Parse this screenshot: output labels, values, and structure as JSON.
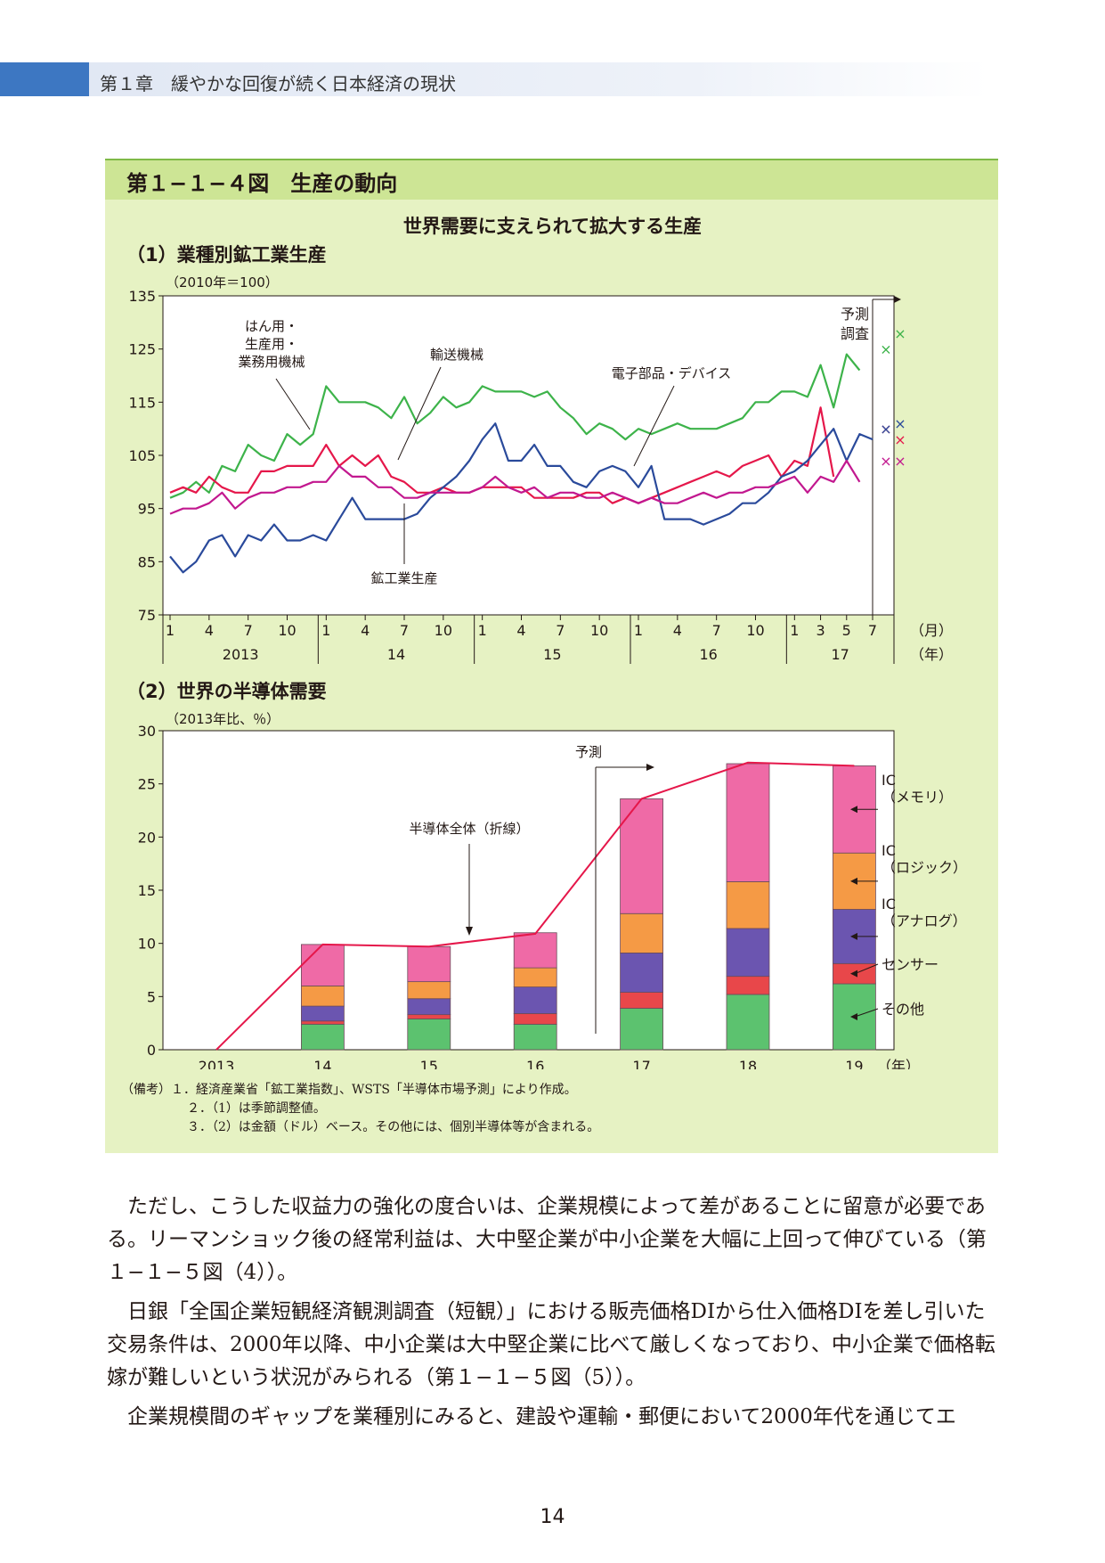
{
  "header": {
    "chapter": "第１章　緩やかな回復が続く日本経済の現状"
  },
  "figure": {
    "title": "第１−１−４図　生産の動向",
    "subtitle": "世界需要に支えられて拡大する生産"
  },
  "colors": {
    "green": "#3db34a",
    "red": "#e5174a",
    "blue": "#2a4a9b",
    "magenta": "#c2188f",
    "pink": "#ef6aa6",
    "orange": "#f59a45",
    "purple": "#6b55b0",
    "other": "#5cc26f",
    "sensor": "#e8474a"
  },
  "chart_data": [
    {
      "type": "line",
      "title": "（1）業種別鉱工業生産",
      "unit": "（2010年＝100）",
      "ylim": [
        75,
        135
      ],
      "yticks": [
        75,
        85,
        95,
        105,
        115,
        125,
        135
      ],
      "month_ticks": [
        "1",
        "4",
        "7",
        "10",
        "1",
        "4",
        "7",
        "10",
        "1",
        "4",
        "7",
        "10",
        "1",
        "4",
        "7",
        "10",
        "1",
        "3",
        "5",
        "7"
      ],
      "year_labels": [
        "2013",
        "14",
        "15",
        "16",
        "17"
      ],
      "month_unit": "（月）",
      "year_unit": "（年）",
      "forecast_label_1": "予測",
      "forecast_label_2": "調査",
      "series": [
        {
          "name": "はん用・生産用・業務用機械",
          "color": "#3db34a",
          "values": [
            97,
            98,
            100,
            98,
            103,
            102,
            107,
            105,
            104,
            109,
            107,
            109,
            118,
            115,
            115,
            115,
            114,
            112,
            116,
            111,
            113,
            116,
            114,
            115,
            118,
            117,
            117,
            117,
            116,
            117,
            114,
            112,
            109,
            111,
            110,
            108,
            110,
            109,
            110,
            111,
            110,
            110,
            110,
            111,
            112,
            115,
            115,
            117,
            117,
            116,
            122,
            114,
            124,
            121
          ],
          "forecast": [
            125,
            128
          ]
        },
        {
          "name": "輸送機械",
          "color": "#e5174a",
          "values": [
            98,
            99,
            98,
            101,
            99,
            98,
            98,
            102,
            102,
            103,
            103,
            103,
            107,
            103,
            105,
            103,
            105,
            101,
            100,
            98,
            98,
            99,
            98,
            98,
            99,
            99,
            99,
            99,
            97,
            97,
            97,
            97,
            98,
            98,
            96,
            97,
            96,
            97,
            98,
            99,
            100,
            101,
            102,
            101,
            103,
            104,
            105,
            101,
            104,
            103,
            114,
            101
          ],
          "forecast": [
            110,
            108
          ]
        },
        {
          "name": "鉱工業生産",
          "color": "#2a4a9b",
          "values": [
            86,
            83,
            85,
            89,
            90,
            86,
            90,
            89,
            92,
            89,
            89,
            90,
            89,
            93,
            97,
            93,
            93,
            93,
            93,
            94,
            97,
            99,
            101,
            104,
            108,
            111,
            104,
            104,
            107,
            103,
            103,
            100,
            99,
            102,
            103,
            102,
            99,
            103,
            93,
            93,
            93,
            92,
            93,
            94,
            96,
            96,
            98,
            101,
            102,
            104,
            107,
            110,
            104,
            109,
            108
          ],
          "forecast": [
            110,
            111
          ]
        },
        {
          "name": "電子部品・デバイス",
          "color": "#c2188f",
          "values": [
            94,
            95,
            95,
            96,
            98,
            95,
            97,
            98,
            98,
            99,
            99,
            100,
            100,
            103,
            101,
            101,
            99,
            99,
            97,
            97,
            98,
            98,
            98,
            98,
            99,
            101,
            99,
            98,
            99,
            97,
            98,
            98,
            97,
            97,
            98,
            97,
            96,
            97,
            96,
            96,
            97,
            98,
            97,
            98,
            98,
            99,
            99,
            100,
            101,
            98,
            101,
            100,
            104,
            100
          ],
          "forecast": [
            104,
            104
          ]
        }
      ],
      "annotations": [
        "はん用・",
        "生産用・",
        "業務用機械",
        "輸送機械",
        "電子部品・デバイス",
        "鉱工業生産"
      ]
    },
    {
      "type": "bar",
      "title": "（2）世界の半導体需要",
      "unit": "（2013年比、％）",
      "ylim": [
        0,
        30
      ],
      "yticks": [
        0,
        5,
        10,
        15,
        20,
        25,
        30
      ],
      "categories": [
        "2013",
        "14",
        "15",
        "16",
        "17",
        "18",
        "19"
      ],
      "year_unit": "（年）",
      "forecast_label": "予測",
      "stack_series": [
        {
          "name": "その他",
          "color": "#5cc26f",
          "values": [
            0,
            2.4,
            2.9,
            2.4,
            3.9,
            5.2,
            6.2
          ]
        },
        {
          "name": "センサー",
          "color": "#e8474a",
          "values": [
            0,
            0.3,
            0.4,
            1.0,
            1.5,
            1.7,
            1.9
          ]
        },
        {
          "name": "IC（アナログ）",
          "color": "#6b55b0",
          "values": [
            0,
            1.4,
            1.5,
            2.5,
            3.7,
            4.5,
            5.1
          ]
        },
        {
          "name": "IC（ロジック）",
          "color": "#f59a45",
          "values": [
            0,
            1.9,
            1.6,
            1.8,
            3.7,
            4.4,
            5.3
          ]
        },
        {
          "name": "IC（メモリ）",
          "color": "#ef6aa6",
          "values": [
            0,
            3.9,
            3.3,
            3.3,
            10.8,
            11.1,
            8.2
          ]
        }
      ],
      "total_line": {
        "name": "半導体全体（折線）",
        "values": [
          0,
          9.9,
          9.7,
          10.9,
          23.6,
          27,
          26.7
        ]
      },
      "legend_labels": [
        {
          "line1": "IC",
          "line2": "（メモリ）"
        },
        {
          "line1": "IC",
          "line2": "（ロジック）"
        },
        {
          "line1": "IC",
          "line2": "（アナログ）"
        },
        {
          "line1": "センサー",
          "line2": ""
        },
        {
          "line1": "その他",
          "line2": ""
        }
      ]
    }
  ],
  "notes": [
    "（備考）１．経済産業省「鉱工業指数」、WSTS「半導体市場予測」により作成。",
    "２．（1）は季節調整値。",
    "３．（2）は金額（ドル）ベース。その他には、個別半導体等が含まれる。"
  ],
  "body": [
    "ただし、こうした収益力の強化の度合いは、企業規模によって差があることに留意が必要である。リーマンショック後の経常利益は、大中堅企業が中小企業を大幅に上回って伸びている（第１−１−５図（4））。",
    "日銀「全国企業短観経済観測調査（短観）」における販売価格DIから仕入価格DIを差し引いた交易条件は、2000年以降、中小企業は大中堅企業に比べて厳しくなっており、中小企業で価格転嫁が難しいという状況がみられる（第１−１−５図（5））。",
    "企業規模間のギャップを業種別にみると、建設や運輸・郵便において2000年代を通じてエ"
  ],
  "page_number": "14"
}
